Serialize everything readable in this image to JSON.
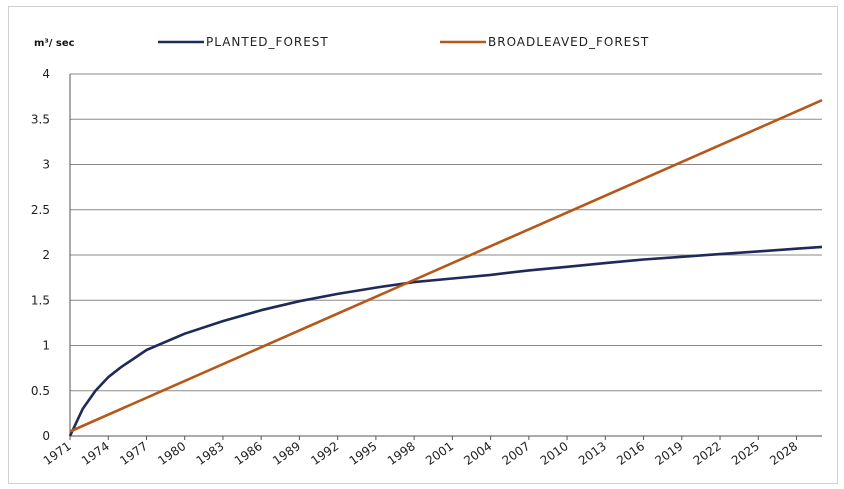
{
  "chart_data": {
    "type": "line",
    "ylabel": "m³/ sec",
    "ylim": [
      0,
      4
    ],
    "yticks": [
      "0",
      "0.5",
      "1",
      "1.5",
      "2",
      "2.5",
      "3",
      "3.5",
      "4"
    ],
    "xticks": [
      "1971",
      "1974",
      "1977",
      "1980",
      "1983",
      "1986",
      "1989",
      "1992",
      "1995",
      "1998",
      "2001",
      "2004",
      "2007",
      "2010",
      "2013",
      "2016",
      "2019",
      "2022",
      "2025",
      "2028"
    ],
    "xlim": [
      1971,
      2030
    ],
    "grid": true,
    "legend_position": "top",
    "series": [
      {
        "name": "PLANTED_FOREST",
        "color": "#1f2a5a",
        "x": [
          1971,
          1972,
          1973,
          1974,
          1975,
          1977,
          1980,
          1983,
          1986,
          1989,
          1992,
          1995,
          1998,
          2001,
          2004,
          2007,
          2010,
          2013,
          2016,
          2019,
          2022,
          2025,
          2028,
          2030
        ],
        "y": [
          0.0,
          0.3,
          0.5,
          0.65,
          0.76,
          0.95,
          1.13,
          1.27,
          1.39,
          1.49,
          1.57,
          1.64,
          1.7,
          1.74,
          1.78,
          1.83,
          1.87,
          1.91,
          1.95,
          1.98,
          2.01,
          2.04,
          2.07,
          2.09
        ]
      },
      {
        "name": "BROADLEAVED_FOREST",
        "color": "#b5581a",
        "x": [
          1971,
          2030
        ],
        "y": [
          0.05,
          3.71
        ]
      }
    ]
  }
}
